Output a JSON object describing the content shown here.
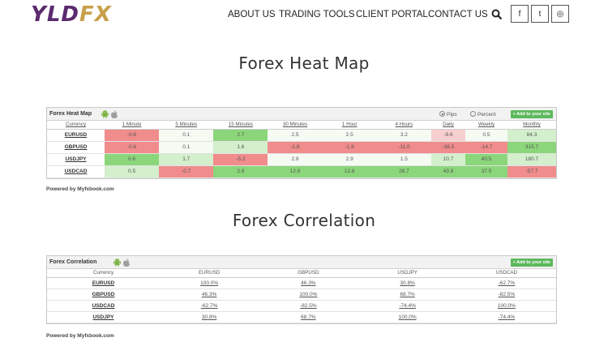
{
  "header": {
    "logo_left": "YLD",
    "logo_right": "FX",
    "nav": [
      "ABOUT US",
      "TRADING TOOLS",
      "CLIENT PORTAL",
      "CONTACT US"
    ],
    "search_icon": "search-icon",
    "social": [
      {
        "icon": "facebook-icon",
        "glyph": "f"
      },
      {
        "icon": "twitter-icon",
        "glyph": "t"
      },
      {
        "icon": "instagram-icon",
        "glyph": "◎"
      }
    ]
  },
  "heatmap": {
    "heading": "Forex Heat Map",
    "widget_title": "Forex Heat Map",
    "option_pips": "Pips",
    "option_percent": "Percent",
    "selected": "Pips",
    "add_button": "+ Add to your site",
    "columns": [
      "Currency",
      "1 Minute",
      "5 Minutes",
      "15 Minutes",
      "30 Minutes",
      "1 Hour",
      "4 Hours",
      "Daily",
      "Weekly",
      "Monthly"
    ],
    "rows": [
      {
        "pair": "EURUSD",
        "values": [
          "-0.6",
          "0.1",
          "2.7",
          "2.5",
          "2.5",
          "3.2",
          "-9.6",
          "0.5",
          "84.3"
        ]
      },
      {
        "pair": "GBPUSD",
        "values": [
          "-0.6",
          "0.1",
          "1.6",
          "-1.8",
          "-1.8",
          "-11.0",
          "-36.5",
          "-14.7",
          "315.7"
        ]
      },
      {
        "pair": "USDJPY",
        "values": [
          "0.6",
          "1.7",
          "-5.2",
          "2.9",
          "2.9",
          "1.5",
          "10.7",
          "40.5",
          "180.7"
        ]
      },
      {
        "pair": "USDCAD",
        "values": [
          "0.5",
          "-0.7",
          "2.8",
          "12.8",
          "12.8",
          "28.7",
          "43.8",
          "37.5",
          "-57.7"
        ]
      }
    ],
    "colors": {
      "strong_red": "#f08c8c",
      "light_red": "#f7cfcf",
      "strong_green": "#8bd67a",
      "light_green": "#d3efcc",
      "neutral": "#f5fbf3"
    },
    "cell_colors": [
      [
        "strong_red",
        "neutral",
        "strong_green",
        "neutral",
        "neutral",
        "neutral",
        "light_red",
        "neutral",
        "light_green"
      ],
      [
        "strong_red",
        "neutral",
        "light_green",
        "strong_red",
        "strong_red",
        "strong_red",
        "strong_red",
        "strong_red",
        "strong_green"
      ],
      [
        "strong_green",
        "light_green",
        "strong_red",
        "neutral",
        "neutral",
        "neutral",
        "light_green",
        "strong_green",
        "light_green"
      ],
      [
        "light_green",
        "strong_red",
        "strong_green",
        "strong_green",
        "strong_green",
        "strong_green",
        "strong_green",
        "strong_green",
        "strong_red"
      ]
    ],
    "powered": "Powered by Myfxbook.com"
  },
  "correlation": {
    "heading": "Forex Correlation",
    "widget_title": "Forex Correlation",
    "add_button": "+ Add to your site",
    "columns": [
      "Currency",
      "EURUSD",
      "GBPUSD",
      "USDJPY",
      "USDCAD"
    ],
    "rows": [
      {
        "pair": "EURUSD",
        "values": [
          "100.0%",
          "46.3%",
          "30.8%",
          "-62.7%"
        ]
      },
      {
        "pair": "GBPUSD",
        "values": [
          "46.3%",
          "100.0%",
          "68.7%",
          "-82.5%"
        ]
      },
      {
        "pair": "USDCAD",
        "values": [
          "-62.7%",
          "-82.5%",
          "-74.4%",
          "100.0%"
        ]
      },
      {
        "pair": "USDJPY",
        "values": [
          "30.8%",
          "68.7%",
          "100.0%",
          "-74.4%"
        ]
      }
    ],
    "powered": "Powered by Myfxbook.com"
  }
}
